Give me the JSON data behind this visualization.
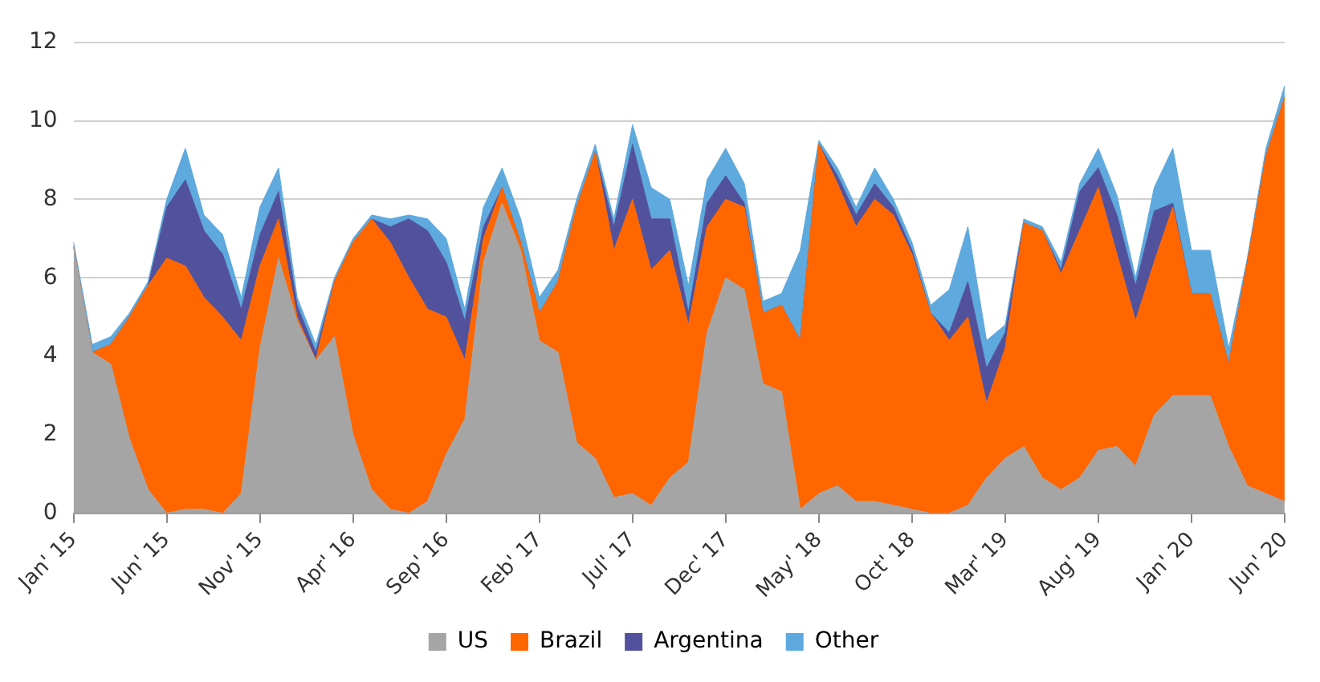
{
  "chart_data": {
    "type": "area",
    "stacked": true,
    "categories": [
      "Jan' 15",
      null,
      null,
      null,
      null,
      "Jun' 15",
      null,
      null,
      null,
      null,
      "Nov' 15",
      null,
      null,
      null,
      null,
      "Apr' 16",
      null,
      null,
      null,
      null,
      "Sep' 16",
      null,
      null,
      null,
      null,
      "Feb' 17",
      null,
      null,
      null,
      null,
      "Jul' 17",
      null,
      null,
      null,
      null,
      "Dec' 17",
      null,
      null,
      null,
      null,
      "May' 18",
      null,
      null,
      null,
      null,
      "Oct' 18",
      null,
      null,
      null,
      null,
      "Mar' 19",
      null,
      null,
      null,
      null,
      "Aug' 19",
      null,
      null,
      null,
      null,
      "Jan' 20",
      null,
      null,
      null,
      null,
      "Jun' 20"
    ],
    "series": [
      {
        "name": "US",
        "color": "#a5a5a5",
        "values": [
          6.8,
          4.1,
          3.8,
          1.9,
          0.6,
          0,
          0.1,
          0.1,
          0,
          0.5,
          4.2,
          6.5,
          4.9,
          3.9,
          4.5,
          2.0,
          0.6,
          0.1,
          0,
          0.3,
          1.5,
          2.4,
          6.4,
          7.9,
          6.7,
          4.4,
          4.1,
          1.8,
          1.4,
          0.4,
          0.5,
          0.2,
          0.9,
          1.3,
          4.6,
          6.0,
          5.7,
          3.3,
          3.1,
          0.1,
          0.5,
          0.7,
          0.3,
          0.3,
          0.2,
          0.1,
          0,
          0,
          0.2,
          0.9,
          1.4,
          1.7,
          0.9,
          0.6,
          0.9,
          1.6,
          1.7,
          1.2,
          2.5,
          3.0,
          3.0,
          3.0,
          1.7,
          0.7,
          0.5,
          0.3
        ]
      },
      {
        "name": "Brazil",
        "color": "#ff6600",
        "values": [
          0,
          0,
          0.5,
          3.1,
          5.2,
          6.5,
          6.2,
          5.4,
          5.0,
          3.9,
          2.1,
          1.0,
          0.1,
          0,
          1.4,
          4.9,
          6.9,
          6.8,
          6.0,
          4.9,
          3.5,
          1.5,
          0.6,
          0.4,
          0.2,
          0.7,
          1.8,
          6.0,
          7.8,
          6.3,
          7.5,
          6.0,
          5.8,
          3.5,
          2.7,
          2.0,
          2.1,
          1.8,
          2.2,
          4.3,
          8.9,
          7.7,
          7.0,
          7.7,
          7.4,
          6.5,
          5.1,
          4.4,
          4.8,
          1.9,
          2.8,
          5.7,
          6.3,
          5.5,
          6.3,
          6.7,
          4.9,
          3.7,
          3.9,
          4.8,
          2.6,
          2.6,
          2.1,
          5.7,
          8.6,
          10.3
        ]
      },
      {
        "name": "Argentina",
        "color": "#52519b",
        "values": [
          0,
          0,
          0,
          0,
          0,
          1.3,
          2.2,
          1.7,
          1.6,
          0.8,
          0.8,
          0.7,
          0.3,
          0.2,
          0,
          0,
          0,
          0.4,
          1.5,
          2.0,
          1.4,
          1.0,
          0.3,
          0,
          0,
          0,
          0,
          0,
          0,
          0.6,
          1.4,
          1.3,
          0.8,
          0.3,
          0.6,
          0.6,
          0.1,
          0,
          0,
          0,
          0,
          0.2,
          0.3,
          0.4,
          0.2,
          0.1,
          0,
          0.2,
          0.9,
          0.9,
          0.4,
          0,
          0,
          0.1,
          1.0,
          0.5,
          1.0,
          0.9,
          1.3,
          0.1,
          0,
          0,
          0,
          0,
          0,
          0
        ]
      },
      {
        "name": "Other",
        "color": "#5ea9dd",
        "values": [
          0.1,
          0.2,
          0.2,
          0.1,
          0.1,
          0.2,
          0.8,
          0.4,
          0.5,
          0.3,
          0.7,
          0.6,
          0.2,
          0.2,
          0.1,
          0.1,
          0.1,
          0.2,
          0.1,
          0.3,
          0.6,
          0.3,
          0.5,
          0.5,
          0.6,
          0.4,
          0.3,
          0.2,
          0.2,
          0.2,
          0.5,
          0.8,
          0.5,
          0.7,
          0.6,
          0.7,
          0.5,
          0.3,
          0.3,
          2.3,
          0.1,
          0.2,
          0.2,
          0.4,
          0.2,
          0.2,
          0.2,
          1.1,
          1.4,
          0.7,
          0.2,
          0.1,
          0.1,
          0.2,
          0.2,
          0.5,
          0.5,
          0.2,
          0.6,
          1.4,
          1.1,
          1.1,
          0.4,
          0.1,
          0.2,
          0.3
        ]
      }
    ],
    "ylim": [
      0,
      12
    ],
    "yticks": [
      0,
      2,
      4,
      6,
      8,
      10,
      12
    ],
    "grid": "y",
    "legend": "bottom",
    "marker": "none"
  }
}
